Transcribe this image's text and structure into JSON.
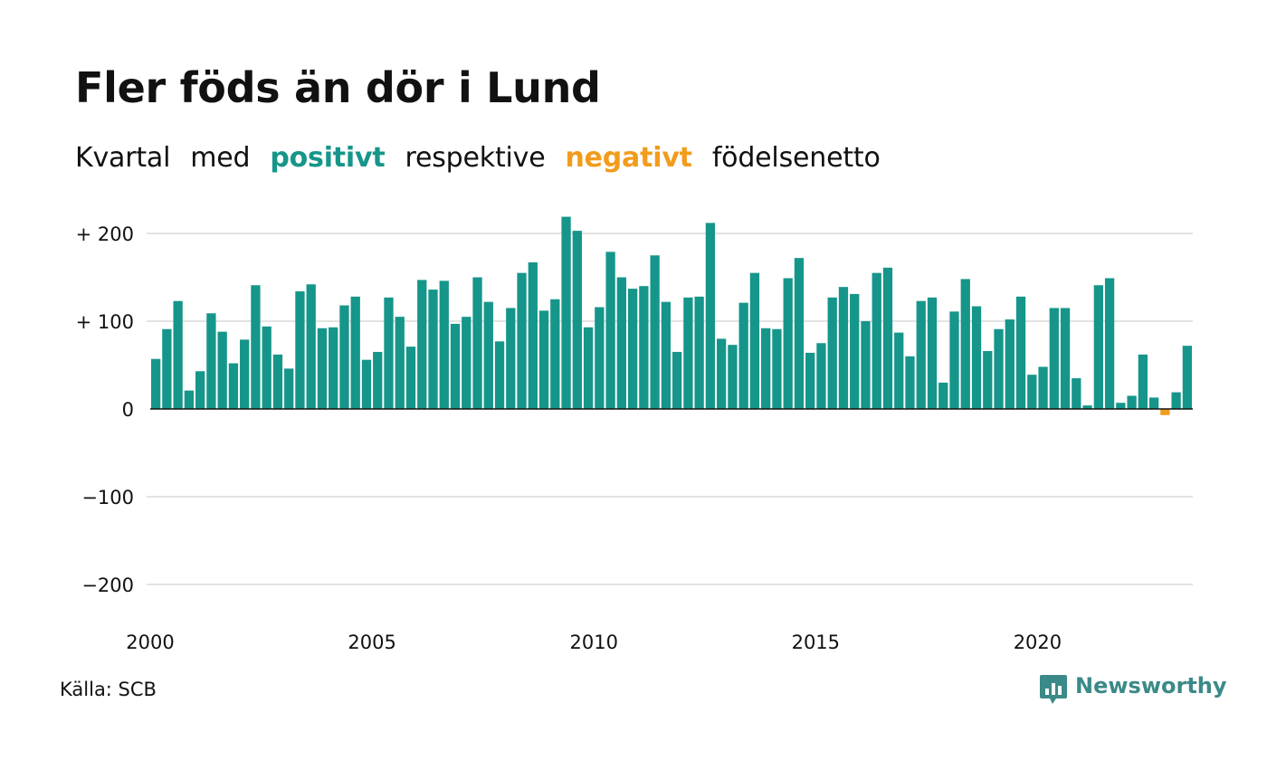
{
  "title": "Fler föds än dör i Lund",
  "subtitle": {
    "part1": "Kvartal",
    "part2": "med",
    "positive_word": "positivt",
    "part3": "respektive",
    "negative_word": "negativt",
    "part4": "födelsenetto"
  },
  "colors": {
    "positive": "#16968a",
    "negative": "#f29c1c",
    "grid": "#e3e3e3",
    "brand": "#3a8a87"
  },
  "source": "Källa: SCB",
  "brand": {
    "name": "Newsworthy",
    "icon": "bar-chart-speech-bubble-icon"
  },
  "chart_data": {
    "type": "bar",
    "title": "Fler föds än dör i Lund",
    "x_start": 2000,
    "x_ticks": [
      "2000",
      "2005",
      "2010",
      "2015",
      "2020"
    ],
    "y_ticks": [
      {
        "value": 200,
        "label": "+ 200"
      },
      {
        "value": 100,
        "label": "+ 100"
      },
      {
        "value": 0,
        "label": "0"
      },
      {
        "value": -100,
        "label": "−100"
      },
      {
        "value": -200,
        "label": "−200"
      }
    ],
    "ylim": [
      -240,
      220
    ],
    "grid": true,
    "values": [
      57,
      91,
      123,
      21,
      43,
      109,
      88,
      52,
      79,
      141,
      94,
      62,
      46,
      134,
      142,
      92,
      93,
      118,
      128,
      56,
      65,
      127,
      105,
      71,
      147,
      136,
      146,
      97,
      105,
      150,
      122,
      77,
      115,
      155,
      167,
      112,
      125,
      219,
      203,
      93,
      116,
      179,
      150,
      137,
      140,
      175,
      122,
      65,
      127,
      128,
      212,
      80,
      73,
      121,
      155,
      92,
      91,
      149,
      172,
      64,
      75,
      127,
      139,
      131,
      100,
      155,
      161,
      87,
      60,
      123,
      127,
      30,
      111,
      148,
      117,
      66,
      91,
      102,
      128,
      39,
      48,
      115,
      115,
      35,
      4,
      141,
      149,
      7,
      15,
      62,
      13,
      -7,
      19,
      72
    ]
  }
}
